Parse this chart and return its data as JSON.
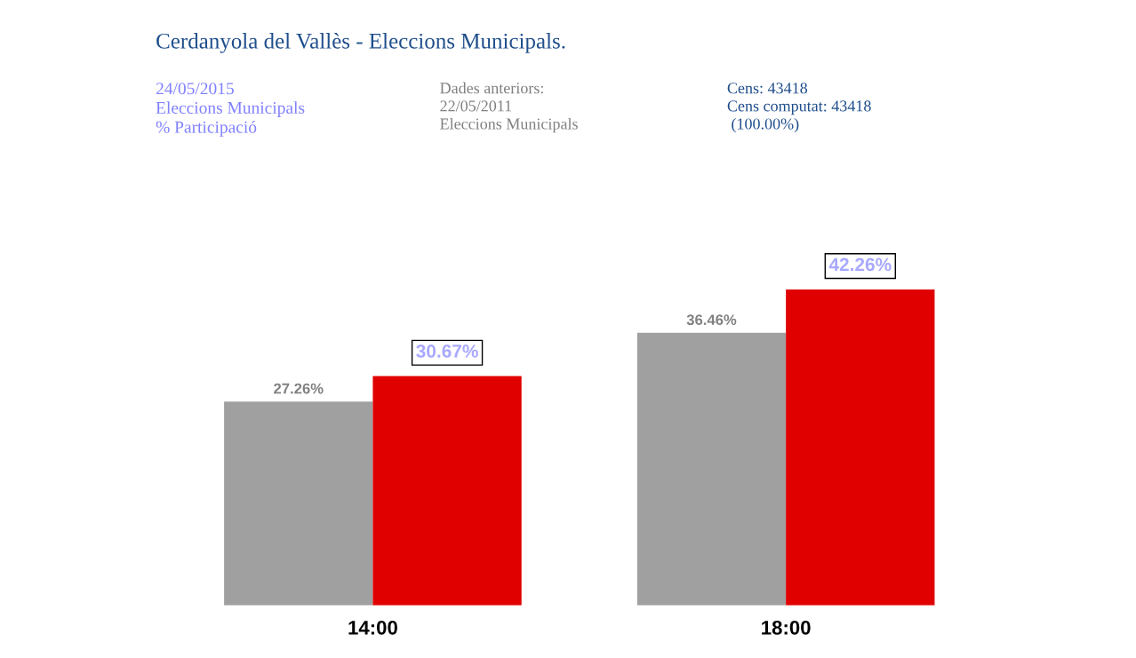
{
  "chart_data": {
    "type": "bar",
    "title": "Cerdanyola del Vallès - Eleccions Municipals.",
    "annotations": [
      "24/05/2015\nEleccions Municipals\n% Participació",
      "Dades anteriors:\n22/05/2011\nEleccions Municipals",
      "Cens: 43418\nCens computat: 43418\n (100.00%)"
    ],
    "categories": [
      "14:00",
      "18:00"
    ],
    "series": [
      {
        "color": "#a0a0a0",
        "values": [
          27.26,
          36.46
        ],
        "value_labels": [
          "27.26%",
          "36.46%"
        ]
      },
      {
        "color": "#e00000",
        "values": [
          30.67,
          42.26
        ],
        "value_labels": [
          "30.67%",
          "42.26%"
        ]
      }
    ],
    "grid": false,
    "legend": false,
    "tick_labels": "x"
  }
}
